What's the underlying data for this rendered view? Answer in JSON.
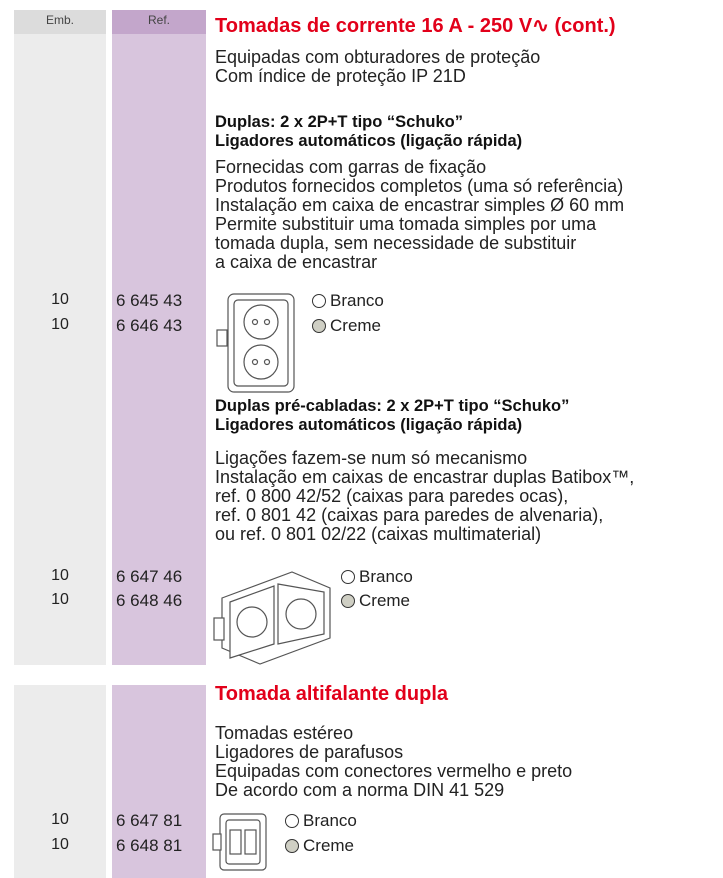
{
  "header": {
    "emb": "Emb.",
    "ref": "Ref."
  },
  "sections": [
    {
      "title": "Tomadas de corrente 16 A - 250 V∿ (cont.)",
      "intro": [
        "Equipadas com obturadores de proteção",
        "Com índice de proteção IP 21D"
      ],
      "groups": [
        {
          "heading": [
            "Duplas: 2 x 2P+T tipo “Schuko”",
            "Ligadores automáticos (ligação rápida)"
          ],
          "text": [
            "Fornecidas com garras de fixação",
            "Produtos fornecidos completos (uma só referência)",
            "Instalação em caixa de encastrar simples Ø 60 mm",
            "Permite substituir uma tomada simples por uma",
            "tomada dupla, sem necessidade de substituir",
            "a caixa de encastrar"
          ],
          "items": [
            {
              "emb": "10",
              "ref": "6 645 43",
              "finish": "Branco"
            },
            {
              "emb": "10",
              "ref": "6 646 43",
              "finish": "Creme"
            }
          ]
        },
        {
          "heading": [
            "Duplas pré-cabladas: 2 x 2P+T tipo “Schuko”",
            "Ligadores automáticos (ligação rápida)"
          ],
          "text": [
            "Ligações fazem-se num só mecanismo",
            "Instalação em caixas de encastrar duplas Batibox™,",
            "ref. 0 800 42/52 (caixas para paredes ocas),",
            "ref. 0 801 42 (caixas para paredes de alvenaria),",
            "ou ref. 0 801 02/22 (caixas multimaterial)"
          ],
          "items": [
            {
              "emb": "10",
              "ref": "6 647 46",
              "finish": "Branco"
            },
            {
              "emb": "10",
              "ref": "6 648 46",
              "finish": "Creme"
            }
          ]
        }
      ]
    },
    {
      "title": "Tomada altifalante dupla",
      "intro": [
        "Tomadas estéreo",
        "Ligadores de parafusos",
        "Equipadas com conectores vermelho e preto",
        "De acordo com a norma DIN 41 529"
      ],
      "items": [
        {
          "emb": "10",
          "ref": "6 647 81",
          "finish": "Branco"
        },
        {
          "emb": "10",
          "ref": "6 648 81",
          "finish": "Creme"
        }
      ]
    }
  ]
}
